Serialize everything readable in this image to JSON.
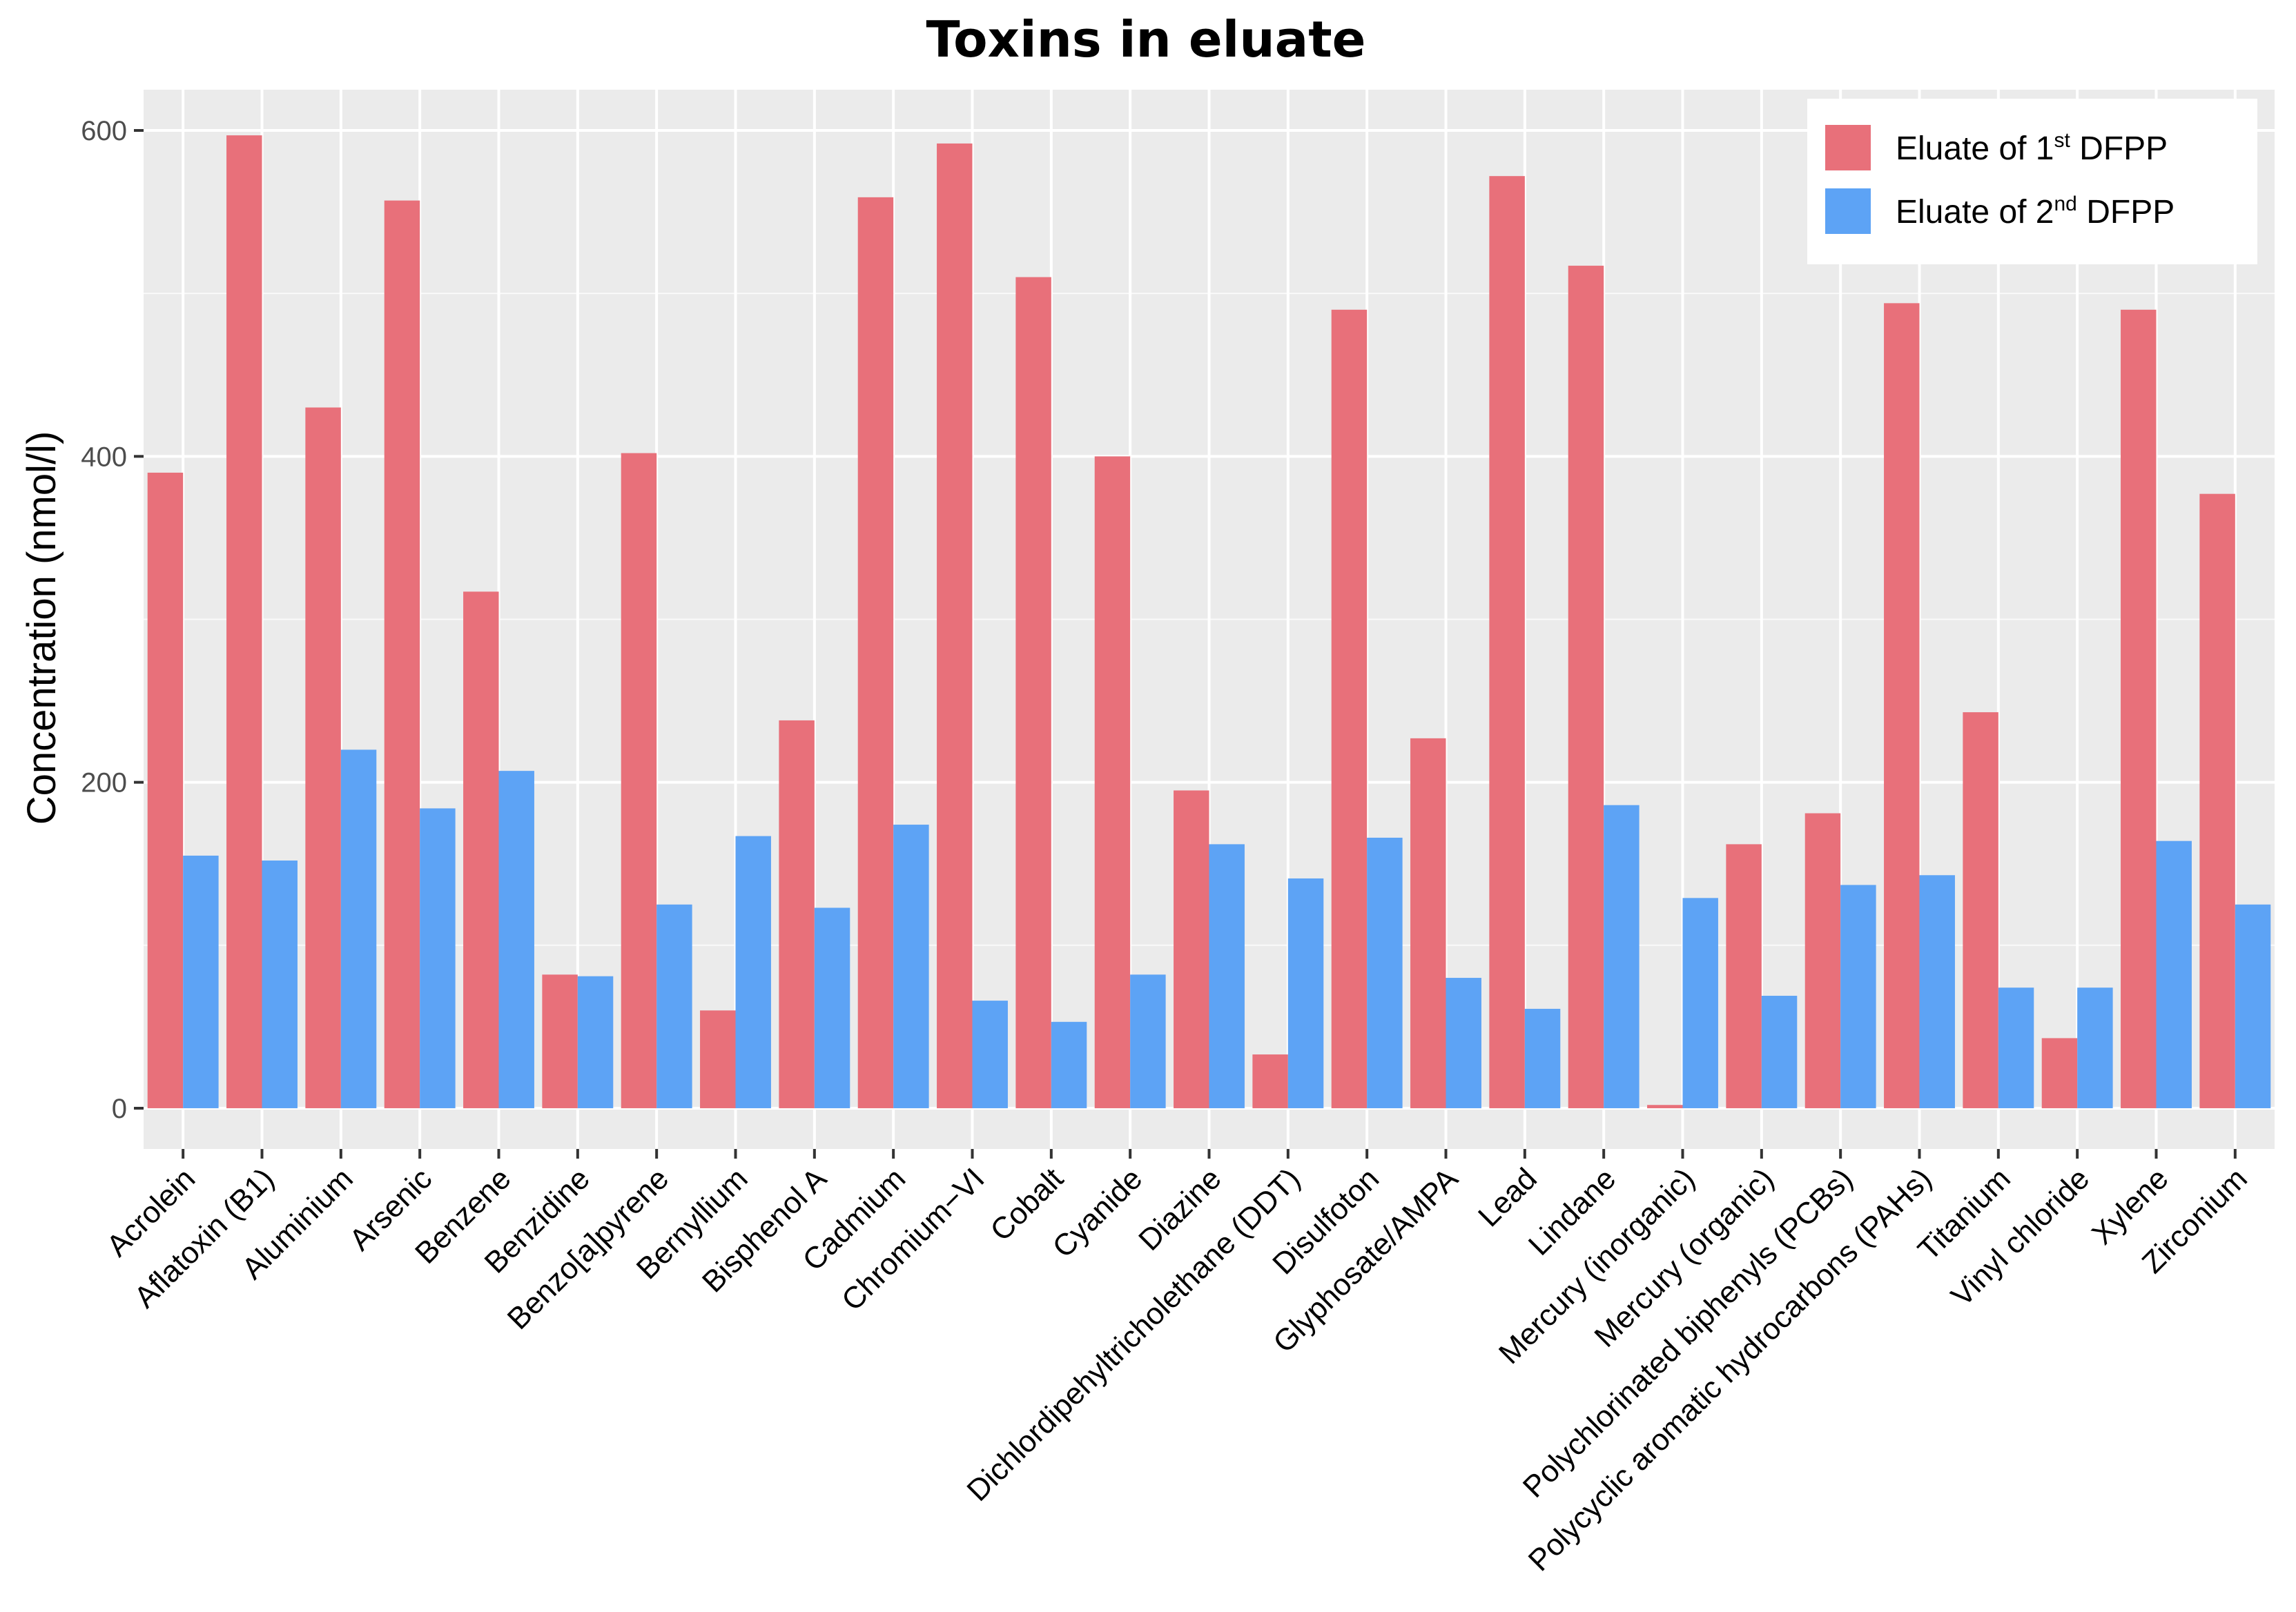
{
  "chart_data": {
    "type": "bar",
    "title": "Toxins in eluate",
    "xlabel": "",
    "ylabel": "Concentration (nmol/l)",
    "ylim": [
      -25,
      625
    ],
    "yticks": [
      0,
      200,
      400,
      600
    ],
    "grid": true,
    "legend_position": "top-right",
    "categories": [
      "Acrolein",
      "Aflatoxin (B1)",
      "Aluminium",
      "Arsenic",
      "Benzene",
      "Benzidine",
      "Benzo[a]pyrene",
      "Bernyllium",
      "Bisphenol A",
      "Cadmium",
      "Chromium−VI",
      "Cobalt",
      "Cyanide",
      "Diazine",
      "Dichlordipehyltricholethane (DDT)",
      "Disulfoton",
      "Glyphosate/AMPA",
      "Lead",
      "Lindane",
      "Mercury (inorganic)",
      "Mercury (organic)",
      "Polychlorinated biphenyls (PCBs)",
      "Polycyclic aromatic hydrocarbons (PAHs)",
      "Titanium",
      "Vinyl chloride",
      "Xylene",
      "Zirconium"
    ],
    "series": [
      {
        "name": "Eluate of 1st DFPP",
        "legend_base": "Eluate of 1",
        "legend_sup": "st",
        "legend_rest": " DFPP",
        "color": "#E8707A",
        "values": [
          390,
          597,
          430,
          557,
          317,
          82,
          402,
          60,
          238,
          559,
          592,
          510,
          400,
          195,
          33,
          490,
          227,
          572,
          517,
          2,
          162,
          181,
          494,
          243,
          43,
          490,
          377
        ]
      },
      {
        "name": "Eluate of 2nd DFPP",
        "legend_base": "Eluate of 2",
        "legend_sup": "nd",
        "legend_rest": " DFPP",
        "color": "#5DA3F5",
        "values": [
          155,
          152,
          220,
          184,
          207,
          81,
          125,
          167,
          123,
          174,
          66,
          53,
          82,
          162,
          141,
          166,
          80,
          61,
          186,
          129,
          69,
          137,
          143,
          74,
          74,
          164,
          125
        ]
      }
    ]
  }
}
